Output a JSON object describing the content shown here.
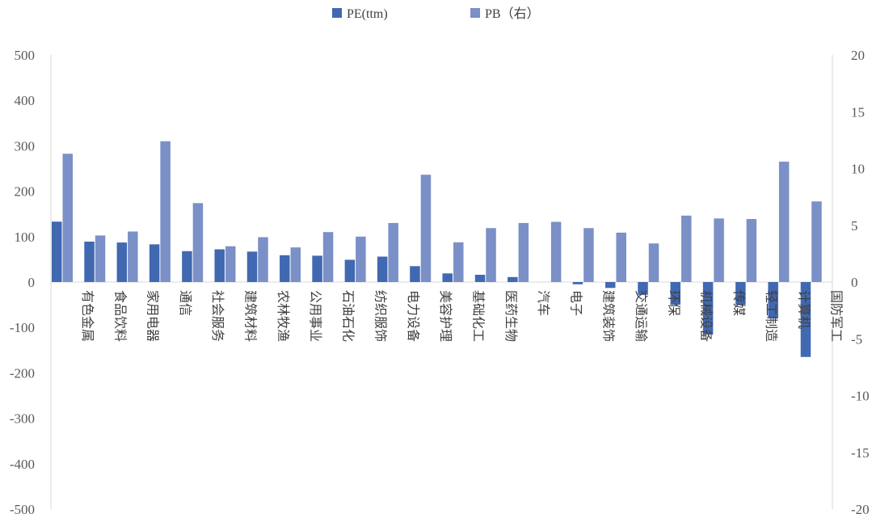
{
  "chart_data": {
    "type": "bar",
    "categories": [
      "有色金属",
      "食品饮料",
      "家用电器",
      "通信",
      "社会服务",
      "建筑材料",
      "农林牧渔",
      "公用事业",
      "石油石化",
      "纺织服饰",
      "电力设备",
      "美容护理",
      "基础化工",
      "医药生物",
      "汽车",
      "电子",
      "建筑装饰",
      "交通运输",
      "环保",
      "机械设备",
      "传媒",
      "轻工制造",
      "计算机",
      "国防军工"
    ],
    "series": [
      {
        "name": "PE(ttm)",
        "axis": "left",
        "color": "#4169b2",
        "values": [
          133,
          89,
          87,
          83,
          68,
          72,
          67,
          59,
          58,
          49,
          56,
          35,
          19,
          16,
          11,
          0,
          -5,
          -13,
          -28,
          -50,
          -115,
          -50,
          -80,
          -165
        ]
      },
      {
        "name": "PB（右）",
        "axis": "right",
        "color": "#7a90c6",
        "values": [
          11.3,
          4.1,
          4.45,
          12.4,
          6.95,
          3.15,
          3.95,
          3.05,
          4.4,
          4.0,
          5.2,
          9.45,
          3.5,
          4.75,
          5.2,
          5.3,
          4.75,
          4.35,
          3.4,
          5.85,
          5.6,
          5.55,
          10.6,
          7.1
        ]
      }
    ],
    "y_left": {
      "min": -500,
      "max": 500,
      "ticks": [
        "500",
        "400",
        "300",
        "200",
        "100",
        "0",
        "-100",
        "-200",
        "-300",
        "-400",
        "-500"
      ]
    },
    "y_right": {
      "min": -20,
      "max": 20,
      "ticks": [
        "20",
        "15",
        "10",
        "5",
        "0",
        "-5",
        "-10",
        "-15",
        "-20"
      ]
    },
    "legend": {
      "position": "top-center",
      "items": [
        "PE(ttm)",
        "PB（右）"
      ]
    }
  }
}
